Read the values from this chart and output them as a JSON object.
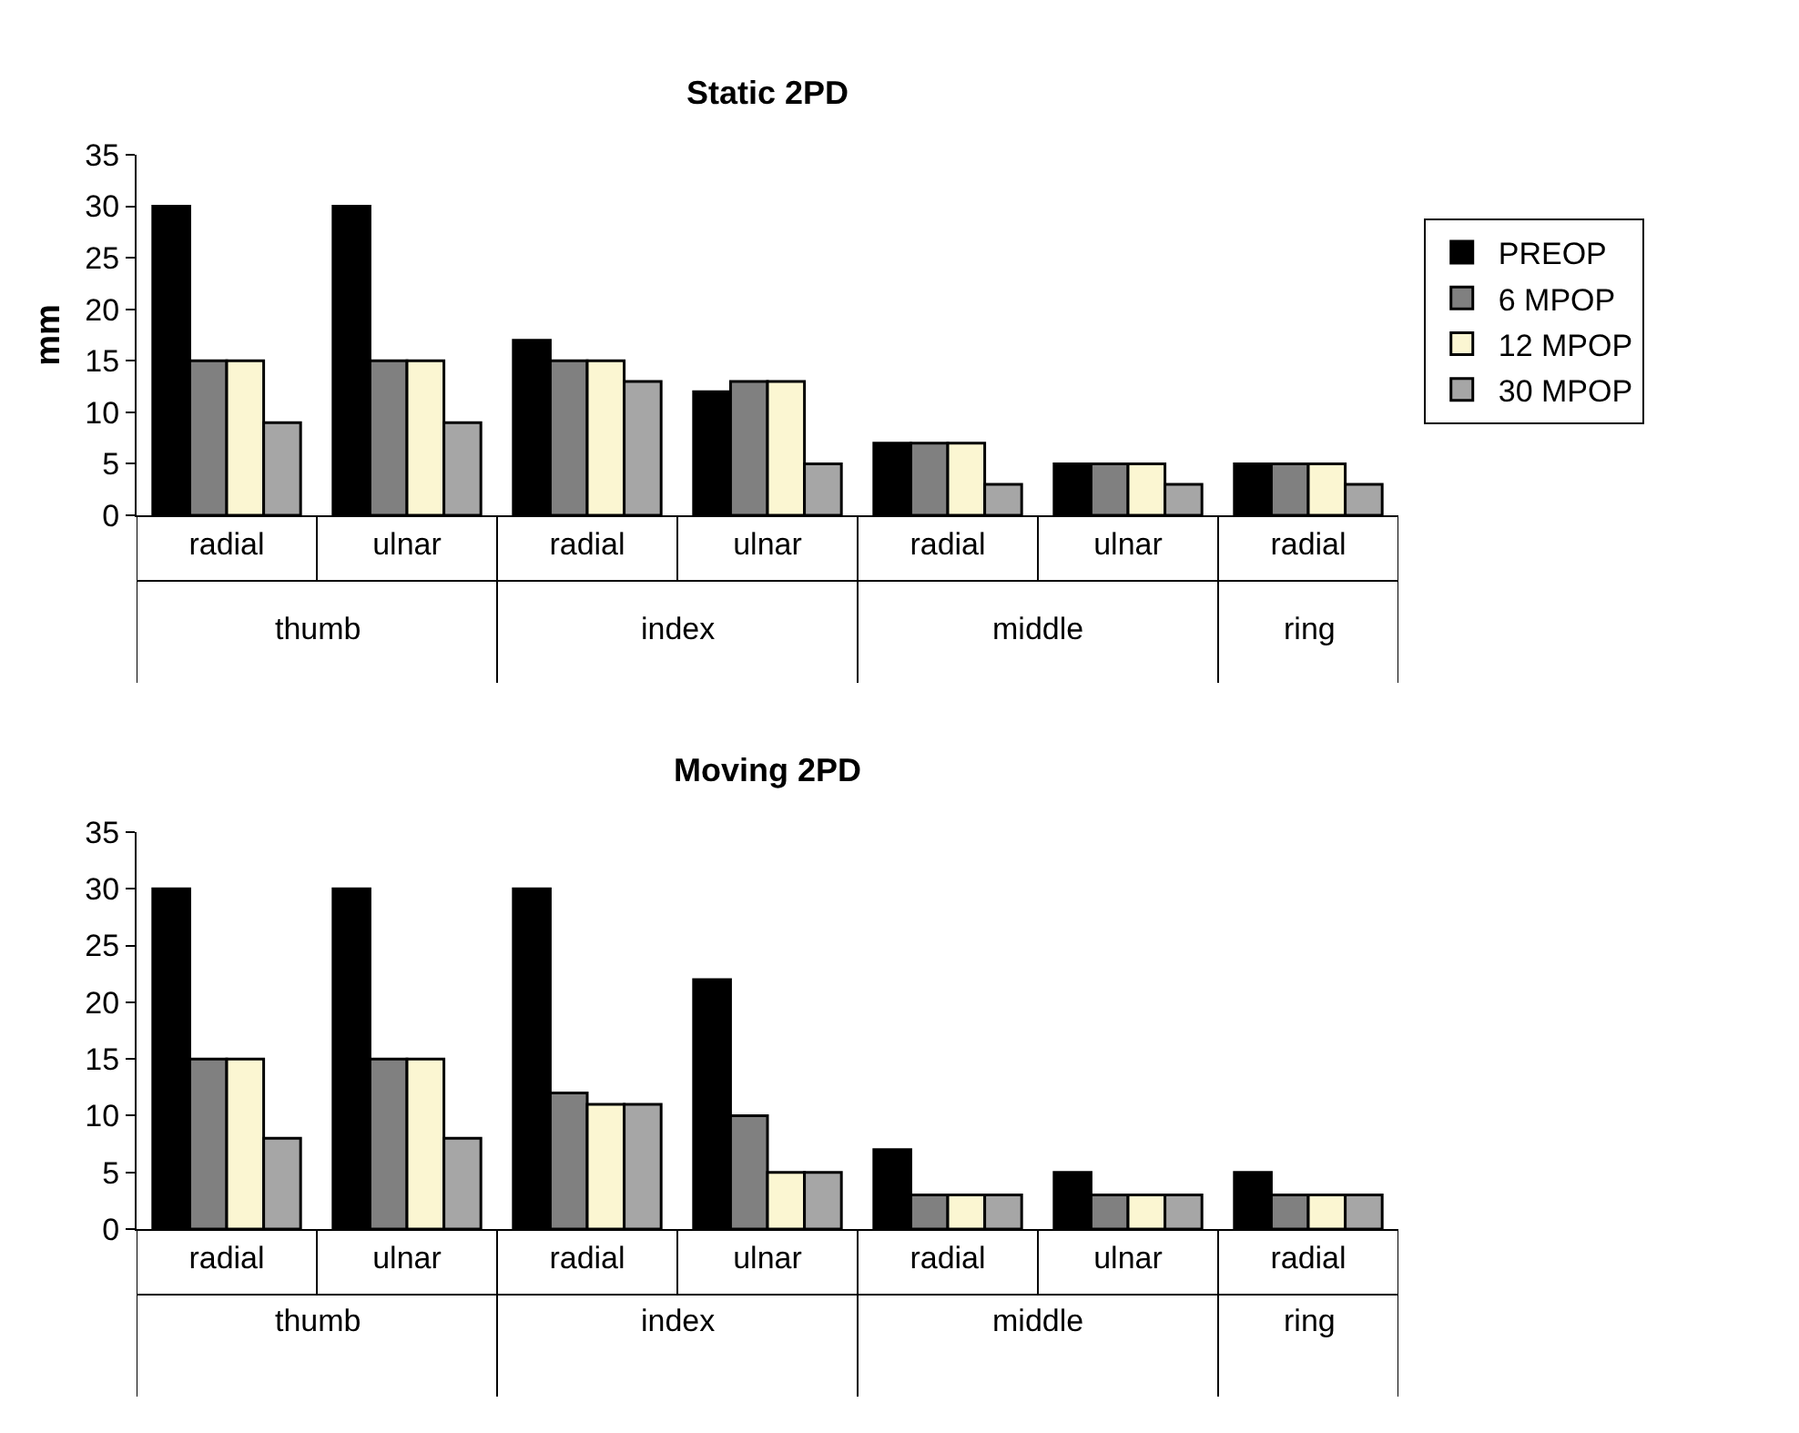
{
  "chart_data": [
    {
      "type": "bar",
      "title": "Static 2PD",
      "ylabel": "mm",
      "categories": [
        "radial",
        "ulnar",
        "radial",
        "ulnar",
        "radial",
        "ulnar",
        "radial"
      ],
      "series": [
        {
          "name": "PREOP",
          "color": "#000000",
          "values": [
            30,
            30,
            17,
            12,
            7,
            5,
            5
          ]
        },
        {
          "name": "6 MPOP",
          "color": "#808080",
          "values": [
            15,
            15,
            15,
            13,
            7,
            5,
            5
          ]
        },
        {
          "name": "12 MPOP",
          "color": "#fbf6d2",
          "values": [
            15,
            15,
            15,
            13,
            7,
            5,
            5
          ]
        },
        {
          "name": "30 MPOP",
          "color": "#a6a6a6",
          "values": [
            9,
            9,
            13,
            5,
            3,
            3,
            3
          ]
        }
      ],
      "annotations": [
        "thumb",
        "index",
        "middle",
        "ring"
      ],
      "ylim": [
        0,
        35
      ],
      "yticks": [
        0,
        5,
        10,
        15,
        20,
        25,
        30,
        35
      ],
      "legend": "right"
    },
    {
      "type": "bar",
      "title": "Moving 2PD",
      "categories": [
        "radial",
        "ulnar",
        "radial",
        "ulnar",
        "radial",
        "ulnar",
        "radial"
      ],
      "series": [
        {
          "color": "#000000",
          "values": [
            30,
            30,
            30,
            22,
            7,
            5,
            5
          ]
        },
        {
          "color": "#808080",
          "values": [
            15,
            15,
            12,
            10,
            3,
            3,
            3
          ]
        },
        {
          "color": "#fbf6d2",
          "values": [
            15,
            15,
            11,
            5,
            3,
            3,
            3
          ]
        },
        {
          "color": "#a6a6a6",
          "values": [
            8,
            8,
            11,
            5,
            3,
            3,
            3
          ]
        }
      ],
      "annotations": [
        "thumb",
        "index",
        "middle",
        "ring"
      ],
      "ylim": [
        0,
        35
      ],
      "yticks": [
        0,
        5,
        10,
        15,
        20,
        25,
        30,
        35
      ],
      "legend": false
    }
  ]
}
